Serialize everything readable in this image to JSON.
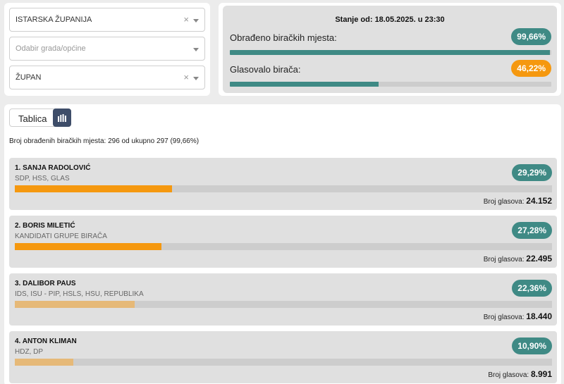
{
  "filters": {
    "county": {
      "value": "ISTARSKA ŽUPANIJA",
      "clearable": true
    },
    "city": {
      "placeholder": "Odabir grada/općine"
    },
    "office": {
      "value": "ŽUPAN",
      "clearable": true
    },
    "clear_glyph": "×"
  },
  "status": {
    "timestamp": "Stanje od: 18.05.2025. u 23:30",
    "processed": {
      "label": "Obrađeno biračkih mjesta:",
      "value": "99,66%",
      "fraction": 0.9966
    },
    "turnout": {
      "label": "Glasovalo birača:",
      "value": "46,22%",
      "fraction": 0.4622
    }
  },
  "view_toggle": {
    "table_label": "Tablica",
    "chart_icon": "bar-chart-icon"
  },
  "summary": "Broj obrađenih biračkih mjesta: 296 od ukupno 297 (99,66%)",
  "colors": {
    "teal": "#3f8a85",
    "orange": "#f5980f",
    "light_orange": "#e6b978"
  },
  "candidates": [
    {
      "name": "1. SANJA RADOLOVIĆ",
      "party": "SDP, HSS, GLAS",
      "percent": "29,29%",
      "fraction": 0.2929,
      "votes_label": "Broj glasova:",
      "votes": "24.152",
      "bar_color": "#f5980f"
    },
    {
      "name": "2. BORIS MILETIĆ",
      "party": "KANDIDATI GRUPE BIRAČA",
      "percent": "27,28%",
      "fraction": 0.2728,
      "votes_label": "Broj glasova:",
      "votes": "22.495",
      "bar_color": "#f5980f"
    },
    {
      "name": "3. DALIBOR PAUS",
      "party": "IDS, ISU - PIP, HSLS, HSU, REPUBLIKA",
      "percent": "22,36%",
      "fraction": 0.2236,
      "votes_label": "Broj glasova:",
      "votes": "18.440",
      "bar_color": "#e6b978"
    },
    {
      "name": "4. ANTON KLIMAN",
      "party": "HDZ, DP",
      "percent": "10,90%",
      "fraction": 0.109,
      "votes_label": "Broj glasova:",
      "votes": "8.991",
      "bar_color": "#e6b978"
    }
  ]
}
